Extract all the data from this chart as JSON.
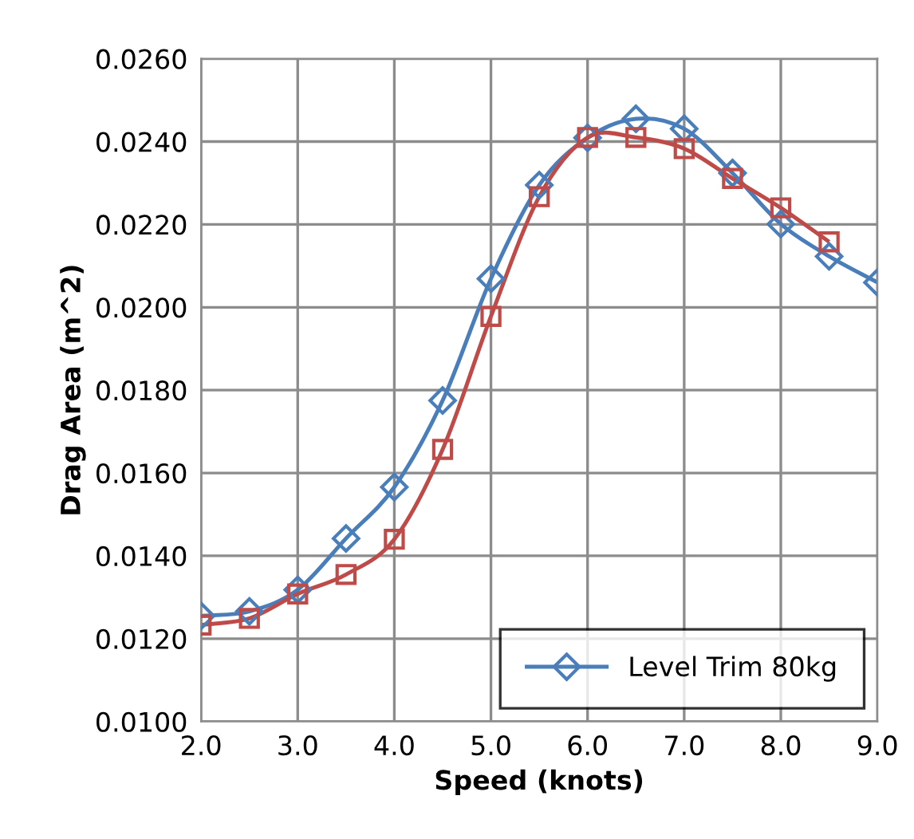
{
  "chart_data": {
    "type": "line",
    "xlabel": "Speed (knots)",
    "ylabel": "Drag Area (m^2)",
    "x": [
      2.0,
      2.5,
      3.0,
      3.5,
      4.0,
      4.5,
      5.0,
      5.5,
      6.0,
      6.5,
      7.0,
      7.5,
      8.0,
      8.5,
      9.0
    ],
    "series": [
      {
        "name": "Level Trim 80kg",
        "color": "#4a7ebb",
        "marker": "diamond",
        "values": [
          0.01255,
          0.01266,
          0.01318,
          0.01442,
          0.01566,
          0.01775,
          0.02069,
          0.02295,
          0.02409,
          0.02455,
          0.02431,
          0.02324,
          0.02201,
          0.02123,
          0.0206
        ]
      },
      {
        "color": "#be4b48",
        "marker": "square",
        "values": [
          0.01233,
          0.01249,
          0.01308,
          0.01355,
          0.0144,
          0.01657,
          0.01978,
          0.02267,
          0.0241,
          0.0241,
          0.02383,
          0.02311,
          0.0224,
          0.02158,
          null
        ]
      }
    ],
    "xlim": [
      2.0,
      9.0
    ],
    "xticks": [
      {
        "value": 2,
        "label": "2.0"
      },
      {
        "value": 3,
        "label": "3.0"
      },
      {
        "value": 4,
        "label": "4.0"
      },
      {
        "value": 5,
        "label": "5.0"
      },
      {
        "value": 6,
        "label": "6.0"
      },
      {
        "value": 7,
        "label": "7.0"
      },
      {
        "value": 8,
        "label": "8.0"
      },
      {
        "value": 9,
        "label": "9.0"
      }
    ],
    "ylim": [
      0.01,
      0.026
    ],
    "yticks": [
      {
        "value": 0.01,
        "label": "0.0100"
      },
      {
        "value": 0.012,
        "label": "0.0120"
      },
      {
        "value": 0.014,
        "label": "0.0140"
      },
      {
        "value": 0.016,
        "label": "0.0160"
      },
      {
        "value": 0.018,
        "label": "0.0180"
      },
      {
        "value": 0.02,
        "label": "0.0200"
      },
      {
        "value": 0.022,
        "label": "0.0220"
      },
      {
        "value": 0.024,
        "label": "0.0240"
      },
      {
        "value": 0.026,
        "label": "0.0260"
      }
    ],
    "grid": true,
    "legend": "lower right",
    "line_style": "solid"
  }
}
